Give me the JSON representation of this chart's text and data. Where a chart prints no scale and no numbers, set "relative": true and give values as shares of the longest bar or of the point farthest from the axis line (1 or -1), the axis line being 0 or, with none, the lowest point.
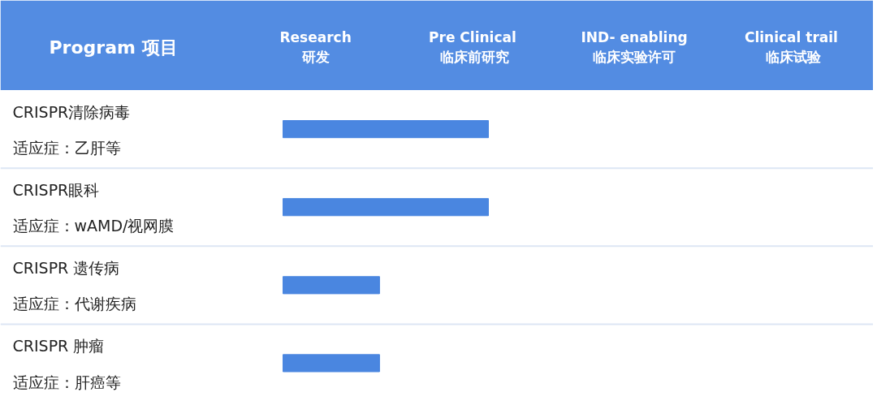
{
  "chart_data": {
    "type": "bar",
    "orientation": "horizontal",
    "relative": true,
    "title": "Program 项目",
    "categories": [
      "CRISPR清除病毒",
      "CRISPR眼科",
      "CRISPR 遗传病",
      "CRISPR 肿瘤"
    ],
    "annotations": [
      "Research\n研发",
      "Pre  Clinical\n临床前研究",
      "IND- enabling\n临床实验许可",
      "Clinical  trail\n临床试验",
      "适应症：乙肝等",
      "适应症：wAMD/视网膜",
      "适应症：代谢疾病",
      "适应症：肝癌等"
    ],
    "values": [
      1,
      1,
      0.47,
      0.47
    ],
    "color": "#4a86e0"
  }
}
